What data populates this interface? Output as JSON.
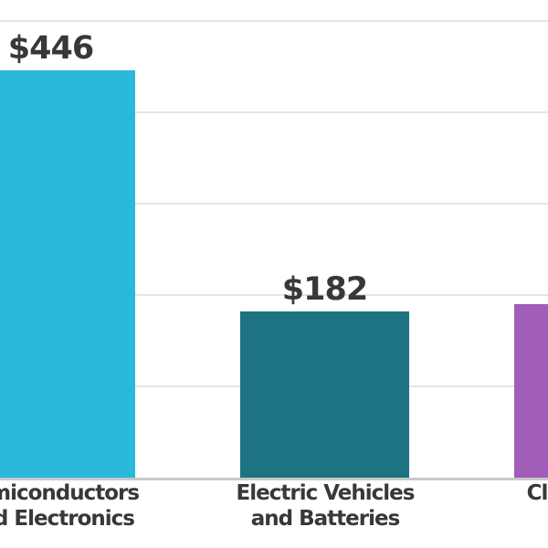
{
  "chart_data": {
    "type": "bar",
    "title": "",
    "xlabel": "",
    "ylabel": "",
    "ylim": [
      0,
      500
    ],
    "gridline_values": [
      100,
      200,
      300,
      400,
      500
    ],
    "grid": true,
    "legend": false,
    "categories": [
      "Semiconductors and Electronics",
      "Electric Vehicles and Batteries",
      "Clean Energy"
    ],
    "category_lines": [
      [
        "Semiconductors",
        "and Electronics"
      ],
      [
        "Electric Vehicles",
        "and Batteries"
      ],
      [
        "Clean Energy",
        ""
      ]
    ],
    "values": [
      446,
      182,
      190
    ],
    "value_labels": [
      "$446",
      "$182",
      ""
    ],
    "colors": [
      "#2ab9da",
      "#1d7381",
      "#a15db8"
    ],
    "text_color": "#383838",
    "gridline_color": "#e4e4e4",
    "axis_line_color": "#c9c9c9",
    "background_color": "#ffffff"
  }
}
